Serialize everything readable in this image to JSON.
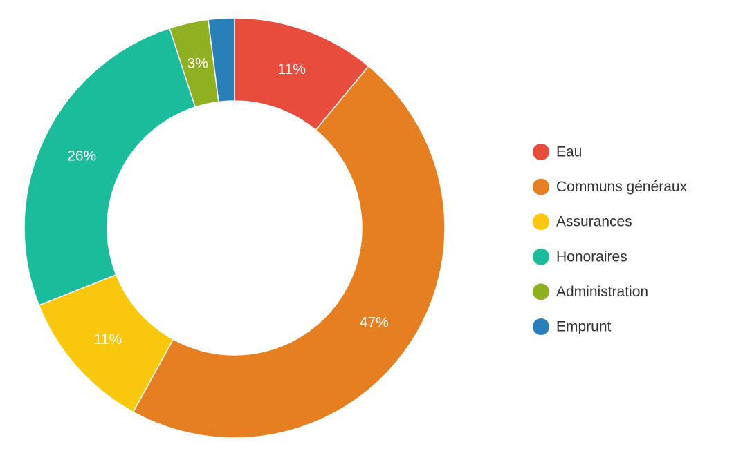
{
  "chart_data": {
    "type": "pie",
    "variant": "donut",
    "categories": [
      "Eau",
      "Communs généraux",
      "Assurances",
      "Honoraires",
      "Administration",
      "Emprunt"
    ],
    "values": [
      11,
      47,
      11,
      26,
      3,
      2
    ],
    "labels": [
      "11%",
      "47%",
      "11%",
      "26%",
      "3%",
      ""
    ],
    "colors": [
      "#e74c3c",
      "#e67e22",
      "#f9c80e",
      "#1abc9c",
      "#8fb021",
      "#2980b9"
    ],
    "legend_position": "right",
    "start_angle": "top, clockwise"
  }
}
